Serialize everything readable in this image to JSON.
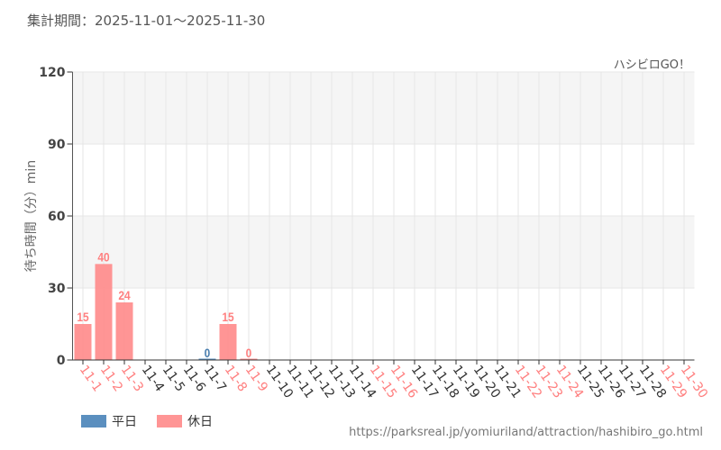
{
  "header": {
    "title": "集計期間：2025-11-01〜2025-11-30",
    "brand": "ハシビロGO！"
  },
  "footer": {
    "source": "https://parksreal.jp/yomiuriland/attraction/hashibiro_go.html"
  },
  "chart_data": {
    "type": "bar",
    "ylabel": "待ち時間（分）min",
    "ylim": [
      0,
      120
    ],
    "yticks": [
      0,
      30,
      60,
      90,
      120
    ],
    "grid": true,
    "categories": [
      "11-1",
      "11-2",
      "11-3",
      "11-4",
      "11-5",
      "11-6",
      "11-7",
      "11-8",
      "11-9",
      "11-10",
      "11-11",
      "11-12",
      "11-13",
      "11-14",
      "11-15",
      "11-16",
      "11-17",
      "11-18",
      "11-19",
      "11-20",
      "11-21",
      "11-22",
      "11-23",
      "11-24",
      "11-25",
      "11-26",
      "11-27",
      "11-28",
      "11-29",
      "11-30"
    ],
    "holidays": [
      "11-1",
      "11-2",
      "11-3",
      "11-8",
      "11-9",
      "11-15",
      "11-16",
      "11-22",
      "11-23",
      "11-24",
      "11-29",
      "11-30"
    ],
    "values": [
      15,
      40,
      24,
      null,
      null,
      null,
      0,
      15,
      0,
      null,
      null,
      null,
      null,
      null,
      null,
      null,
      null,
      null,
      null,
      null,
      null,
      null,
      null,
      null,
      null,
      null,
      null,
      null,
      null,
      null
    ],
    "legend": {
      "placement": "bottom-left",
      "entries": [
        {
          "name": "平日",
          "color": "#5b8fbf"
        },
        {
          "name": "休日",
          "color": "#ff8a8a"
        }
      ]
    },
    "colors": {
      "weekday": "#5b8fbf",
      "holiday": "#ff8a8a",
      "weekday_label": "#4a7fb0",
      "holiday_label": "#ff7f7f"
    }
  }
}
